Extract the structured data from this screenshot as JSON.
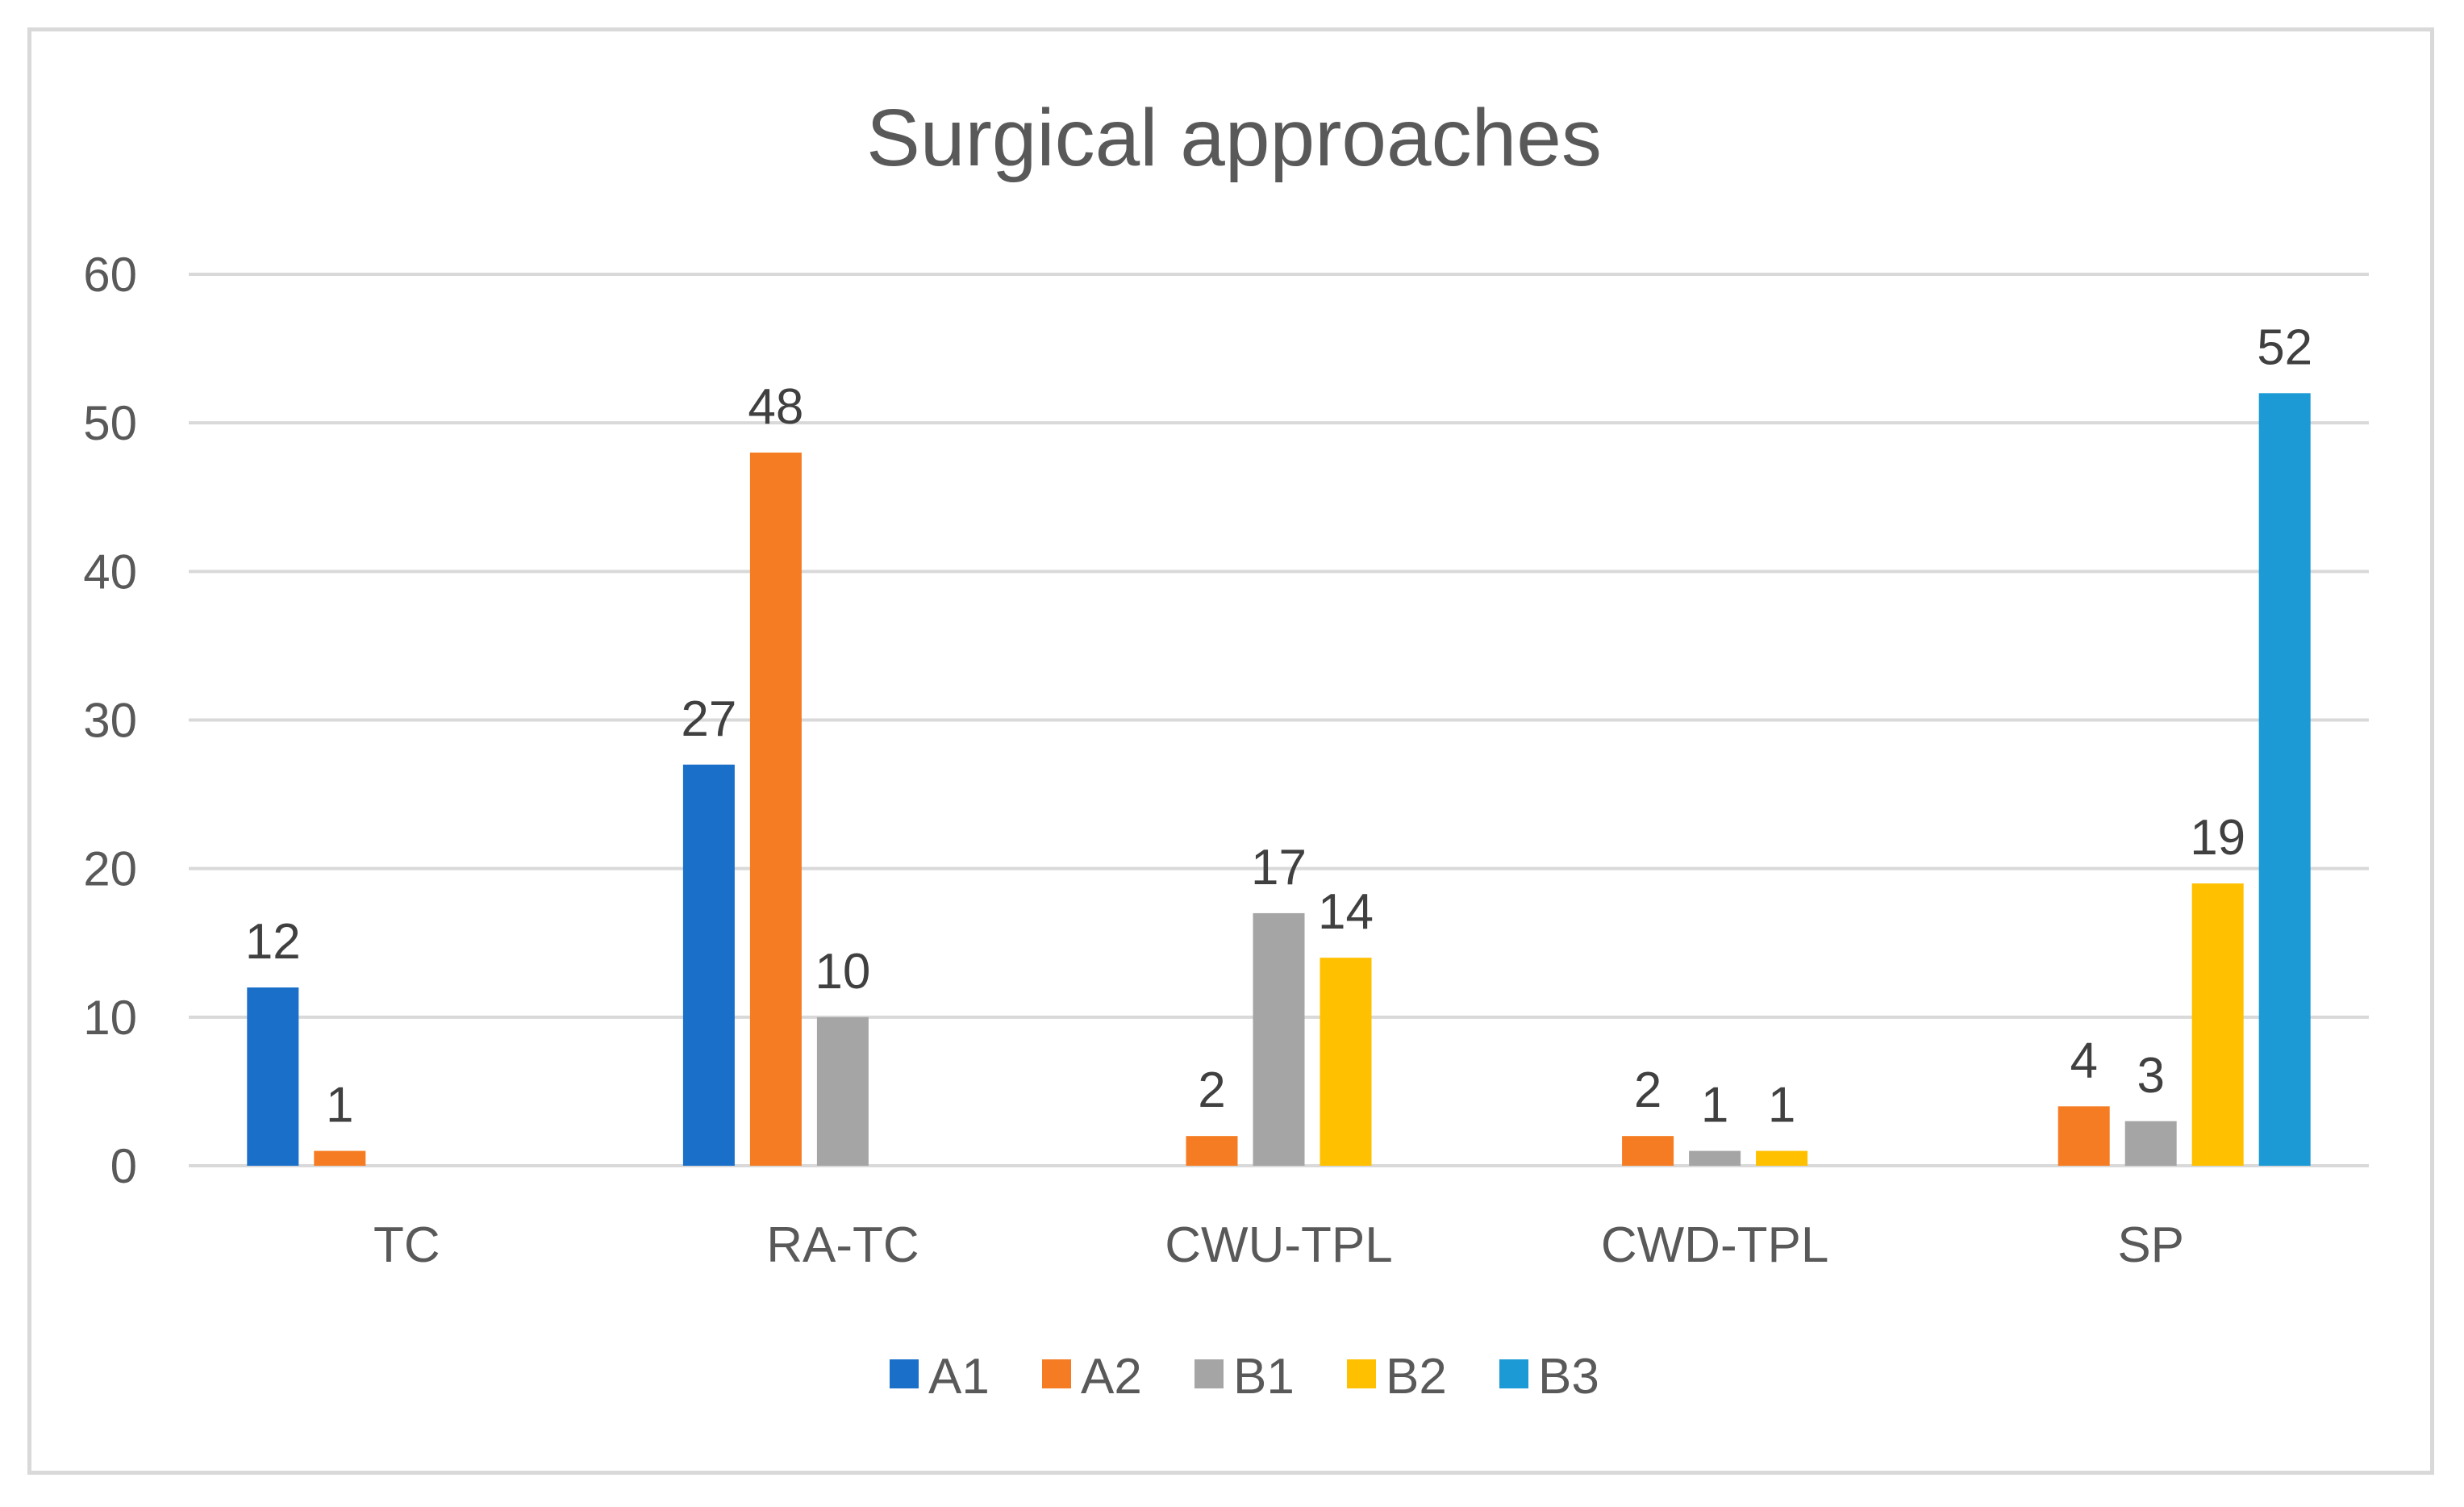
{
  "chart_data": {
    "type": "bar",
    "title": "Surgical approaches",
    "xlabel": "",
    "ylabel": "",
    "categories": [
      "TC",
      "RA-TC",
      "CWU-TPL",
      "CWD-TPL",
      "SP"
    ],
    "ylim": [
      0,
      60
    ],
    "yticks": [
      "0",
      "10",
      "20",
      "30",
      "40",
      "50",
      "60"
    ],
    "grid": true,
    "legend_position": "bottom",
    "series": [
      {
        "name": "A1",
        "color": "#1a6fc9",
        "values": [
          12,
          27,
          null,
          null,
          null
        ]
      },
      {
        "name": "A2",
        "color": "#f57c22",
        "values": [
          1,
          48,
          2,
          2,
          4
        ]
      },
      {
        "name": "B1",
        "color": "#a5a5a5",
        "values": [
          null,
          10,
          17,
          1,
          3
        ]
      },
      {
        "name": "B2",
        "color": "#ffc000",
        "values": [
          null,
          null,
          14,
          1,
          19
        ]
      },
      {
        "name": "B3",
        "color": "#1b9ad6",
        "values": [
          null,
          null,
          null,
          null,
          52
        ]
      }
    ]
  }
}
